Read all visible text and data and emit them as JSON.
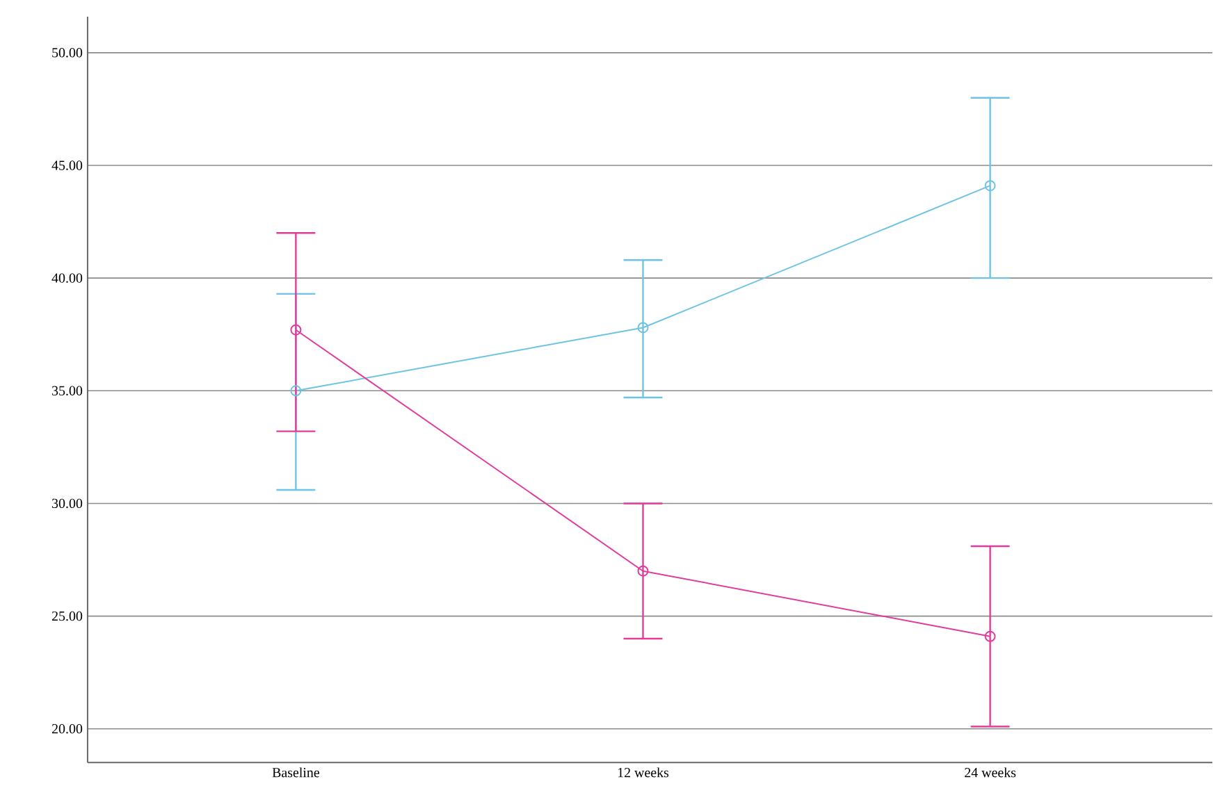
{
  "chart_data": {
    "type": "line",
    "categories": [
      "Baseline",
      "12 weeks",
      "24 weeks"
    ],
    "series": [
      {
        "color": "#6ec3e4",
        "values": [
          35.0,
          37.8,
          44.1
        ],
        "errors": [
          [
            30.6,
            39.3
          ],
          [
            34.7,
            40.8
          ],
          [
            40.0,
            48.0
          ]
        ]
      },
      {
        "color": "#e03c9c",
        "values": [
          37.7,
          27.0,
          24.1
        ],
        "errors": [
          [
            33.2,
            42.0
          ],
          [
            24.0,
            30.0
          ],
          [
            20.1,
            28.1
          ]
        ]
      }
    ],
    "ylim": [
      18.5,
      51.6
    ],
    "yticks": [
      {
        "value": 20,
        "label": "20.00"
      },
      {
        "value": 25,
        "label": "25.00"
      },
      {
        "value": 30,
        "label": "30.00"
      },
      {
        "value": 35,
        "label": "35.00"
      },
      {
        "value": 40,
        "label": "40.00"
      },
      {
        "value": 45,
        "label": "45.00"
      },
      {
        "value": 50,
        "label": "50.00"
      }
    ],
    "grid": "y",
    "marker": "circle"
  }
}
